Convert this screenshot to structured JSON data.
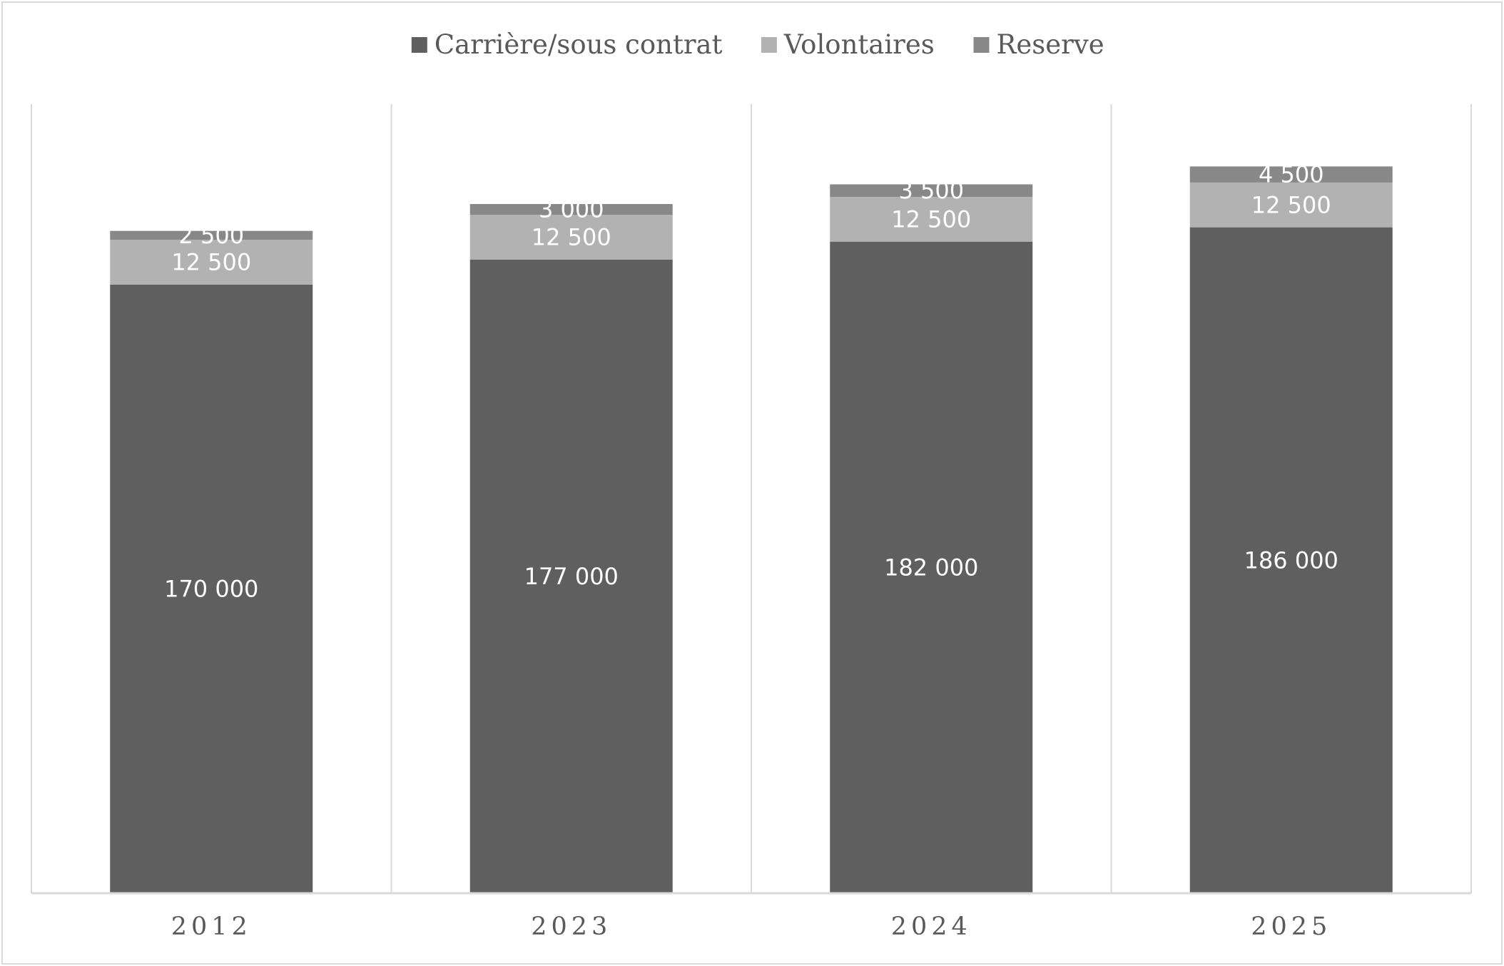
{
  "chart_data": {
    "type": "bar",
    "stacked": true,
    "categories": [
      "2012",
      "2023",
      "2024",
      "2025"
    ],
    "series": [
      {
        "name": "Carrière/sous contrat",
        "values": [
          170000,
          177000,
          182000,
          186000
        ],
        "labels": [
          "170 000",
          "177 000",
          "182 000",
          "186 000"
        ],
        "color": "#5f5f5f"
      },
      {
        "name": "Volontaires",
        "values": [
          12500,
          12500,
          12500,
          12500
        ],
        "labels": [
          "12 500",
          "12 500",
          "12 500",
          "12 500"
        ],
        "color": "#b2b2b2"
      },
      {
        "name": "Reserve",
        "values": [
          2500,
          3000,
          3500,
          4500
        ],
        "labels": [
          "2 500",
          "3 000",
          "3 500",
          "4 500"
        ],
        "color": "#888888"
      }
    ],
    "title": "",
    "xlabel": "",
    "ylabel": "",
    "ylim": [
      0,
      220000
    ],
    "grid": false,
    "category_separators": true,
    "y_axis_visible": false,
    "legend_position": "top",
    "data_labels": true,
    "colors": {
      "axis": "#d9d9d9",
      "tick_text": "#595959",
      "label_text": "#ffffff"
    }
  }
}
